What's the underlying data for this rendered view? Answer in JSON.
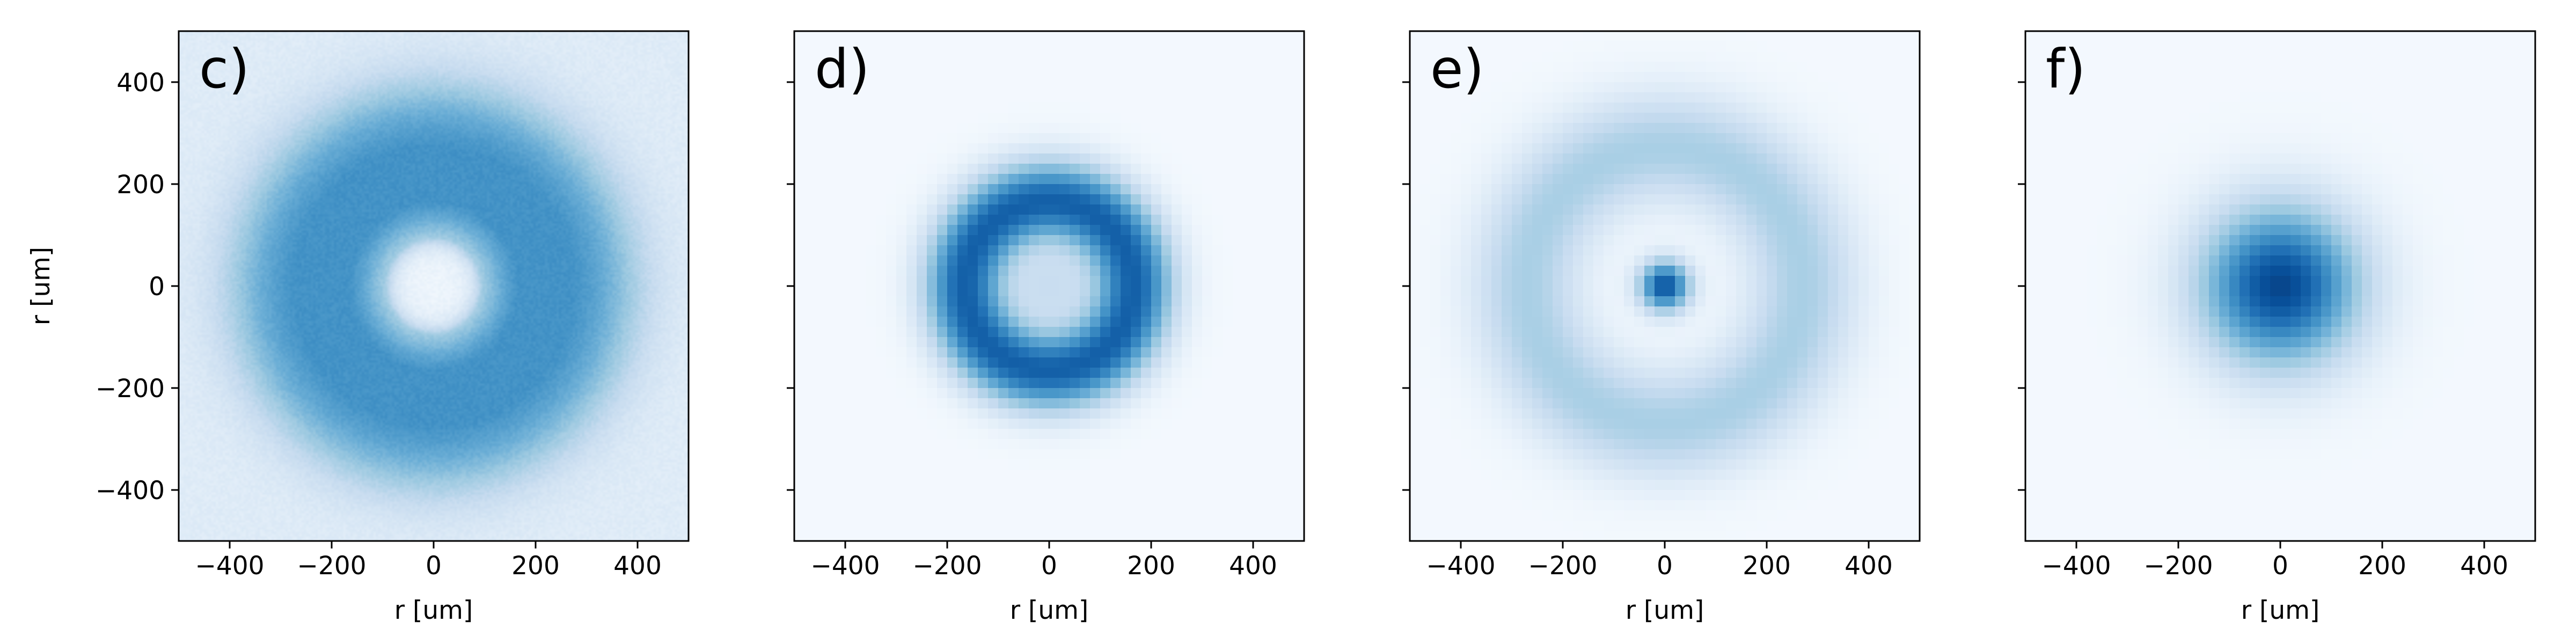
{
  "figure": {
    "background": "#ffffff",
    "colormap": "Blues"
  },
  "chart_data": [
    {
      "type": "heatmap",
      "panel_label": "c)",
      "pattern": "annular ring with hollow center, noisy measured intensity",
      "xlabel": "r [um]",
      "ylabel": "r [um]",
      "xlim": [
        -500,
        500
      ],
      "ylim": [
        -500,
        500
      ],
      "xticks": [
        -400,
        -200,
        0,
        200,
        400
      ],
      "yticks": [
        -400,
        -200,
        0,
        200,
        400
      ],
      "x_tick_labels": [
        "−400",
        "−200",
        "0",
        "200",
        "400"
      ],
      "y_tick_labels": [
        "−400",
        "−200",
        "0",
        "200",
        "400"
      ],
      "profile": {
        "ring_radius": 190,
        "ring_width": 130,
        "center_level": 0.05,
        "background": 0.12,
        "halo_radius": 330,
        "halo_width": 120,
        "halo_level": 0.3,
        "peak": 0.62
      }
    },
    {
      "type": "heatmap",
      "panel_label": "d)",
      "pattern": "annular ring with faint center spot, smooth simulation",
      "xlabel": "r [um]",
      "ylabel": "",
      "xlim": [
        -500,
        500
      ],
      "ylim": [
        -500,
        500
      ],
      "xticks": [
        -400,
        -200,
        0,
        200,
        400
      ],
      "yticks": [
        -400,
        -200,
        0,
        200,
        400
      ],
      "x_tick_labels": [
        "−400",
        "−200",
        "0",
        "200",
        "400"
      ],
      "y_tick_labels": [],
      "profile": {
        "ring_radius": 165,
        "ring_width": 95,
        "center_level": 0.2,
        "background": 0.02,
        "peak": 0.8
      }
    },
    {
      "type": "heatmap",
      "panel_label": "e)",
      "pattern": "bright central spot, dark gap, outer ring",
      "xlabel": "r [um]",
      "ylabel": "",
      "xlim": [
        -500,
        500
      ],
      "ylim": [
        -500,
        500
      ],
      "xticks": [
        -400,
        -200,
        0,
        200,
        400
      ],
      "yticks": [
        -400,
        -200,
        0,
        200,
        400
      ],
      "x_tick_labels": [
        "−400",
        "−200",
        "0",
        "200",
        "400"
      ],
      "y_tick_labels": [],
      "profile": {
        "center_radius": 35,
        "center_peak": 0.85,
        "ring_radius": 270,
        "ring_width": 130,
        "ring_level": 0.32,
        "background": 0.02
      }
    },
    {
      "type": "heatmap",
      "panel_label": "f)",
      "pattern": "single Gaussian spot at center",
      "xlabel": "r [um]",
      "ylabel": "",
      "xlim": [
        -500,
        500
      ],
      "ylim": [
        -500,
        500
      ],
      "xticks": [
        -400,
        -200,
        0,
        200,
        400
      ],
      "yticks": [
        -400,
        -200,
        0,
        200,
        400
      ],
      "x_tick_labels": [
        "−400",
        "−200",
        "0",
        "200",
        "400"
      ],
      "y_tick_labels": [],
      "profile": {
        "sigma": 110,
        "peak": 0.9,
        "background": 0.02
      }
    }
  ]
}
